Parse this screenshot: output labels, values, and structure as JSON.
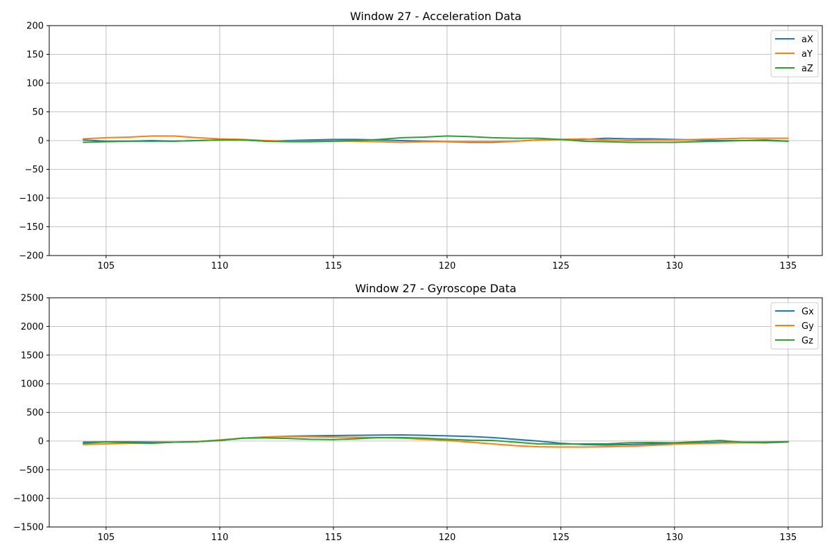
{
  "chart_data": [
    {
      "type": "line",
      "title": "Window 27 - Acceleration Data",
      "xlabel": "",
      "ylabel": "",
      "xlim": [
        102.5,
        136.5
      ],
      "ylim": [
        -200,
        200
      ],
      "xticks": [
        105,
        110,
        115,
        120,
        125,
        130,
        135
      ],
      "xtick_labels": [
        "105",
        "110",
        "115",
        "120",
        "125",
        "130",
        "135"
      ],
      "yticks": [
        -200,
        -150,
        -100,
        -50,
        0,
        50,
        100,
        150,
        200
      ],
      "ytick_labels": [
        "−200",
        "−150",
        "−100",
        "−50",
        "0",
        "50",
        "100",
        "150",
        "200"
      ],
      "grid": true,
      "legend": "top-right",
      "x": [
        104,
        105,
        106,
        107,
        108,
        109,
        110,
        111,
        112,
        113,
        114,
        115,
        116,
        117,
        118,
        119,
        120,
        121,
        122,
        123,
        124,
        125,
        126,
        127,
        128,
        129,
        130,
        131,
        132,
        133,
        134,
        135
      ],
      "series": [
        {
          "name": "aX",
          "color": "#1f77b4",
          "values": [
            1,
            -1,
            -1,
            0,
            -1,
            0,
            1,
            1,
            -1,
            0,
            1,
            2,
            2,
            1,
            0,
            -1,
            -2,
            -3,
            -3,
            -1,
            1,
            2,
            2,
            4,
            3,
            3,
            2,
            1,
            0,
            0,
            1,
            -1
          ]
        },
        {
          "name": "aY",
          "color": "#ff7f0e",
          "values": [
            3,
            5,
            6,
            8,
            8,
            5,
            3,
            2,
            0,
            -1,
            -1,
            -1,
            -1,
            -2,
            -3,
            -2,
            -2,
            -2,
            -2,
            -1,
            1,
            2,
            3,
            1,
            0,
            1,
            1,
            2,
            3,
            4,
            4,
            4
          ]
        },
        {
          "name": "aZ",
          "color": "#2ca02c",
          "values": [
            -3,
            -2,
            -1,
            -1,
            -1,
            0,
            1,
            1,
            -1,
            -2,
            -2,
            -1,
            0,
            2,
            5,
            6,
            8,
            7,
            5,
            4,
            4,
            2,
            -1,
            -2,
            -3,
            -3,
            -3,
            -2,
            -1,
            0,
            0,
            -1
          ]
        }
      ]
    },
    {
      "type": "line",
      "title": "Window 27 - Gyroscope Data",
      "xlabel": "",
      "ylabel": "",
      "xlim": [
        102.5,
        136.5
      ],
      "ylim": [
        -1500,
        2500
      ],
      "xticks": [
        105,
        110,
        115,
        120,
        125,
        130,
        135
      ],
      "xtick_labels": [
        "105",
        "110",
        "115",
        "120",
        "125",
        "130",
        "135"
      ],
      "yticks": [
        -1500,
        -1000,
        -500,
        0,
        500,
        1000,
        1500,
        2000,
        2500
      ],
      "ytick_labels": [
        "−1500",
        "−1000",
        "−500",
        "0",
        "500",
        "1000",
        "1500",
        "2000",
        "2500"
      ],
      "grid": true,
      "legend": "top-right",
      "x": [
        104,
        105,
        106,
        107,
        108,
        109,
        110,
        111,
        112,
        113,
        114,
        115,
        116,
        117,
        118,
        119,
        120,
        121,
        122,
        123,
        124,
        125,
        126,
        127,
        128,
        129,
        130,
        131,
        132,
        133,
        134,
        135
      ],
      "series": [
        {
          "name": "Gx",
          "color": "#1f77b4",
          "values": [
            -20,
            -15,
            -15,
            -20,
            -20,
            -10,
            10,
            50,
            70,
            85,
            90,
            95,
            100,
            105,
            108,
            100,
            90,
            80,
            60,
            30,
            0,
            -40,
            -60,
            -70,
            -60,
            -50,
            -40,
            -30,
            -20,
            -20,
            -20,
            -10
          ]
        },
        {
          "name": "Gy",
          "color": "#ff7f0e",
          "values": [
            -60,
            -50,
            -40,
            -35,
            -20,
            -10,
            20,
            50,
            70,
            80,
            75,
            70,
            65,
            60,
            50,
            30,
            10,
            -20,
            -50,
            -80,
            -100,
            -105,
            -105,
            -100,
            -90,
            -75,
            -55,
            -45,
            -35,
            -30,
            -30,
            -20
          ]
        },
        {
          "name": "Gz",
          "color": "#2ca02c",
          "values": [
            -40,
            -15,
            -30,
            -40,
            -20,
            -10,
            10,
            50,
            55,
            45,
            30,
            25,
            40,
            60,
            60,
            50,
            30,
            15,
            10,
            -20,
            -50,
            -55,
            -50,
            -50,
            -30,
            -25,
            -30,
            -10,
            10,
            -20,
            -30,
            -10
          ]
        }
      ]
    }
  ]
}
